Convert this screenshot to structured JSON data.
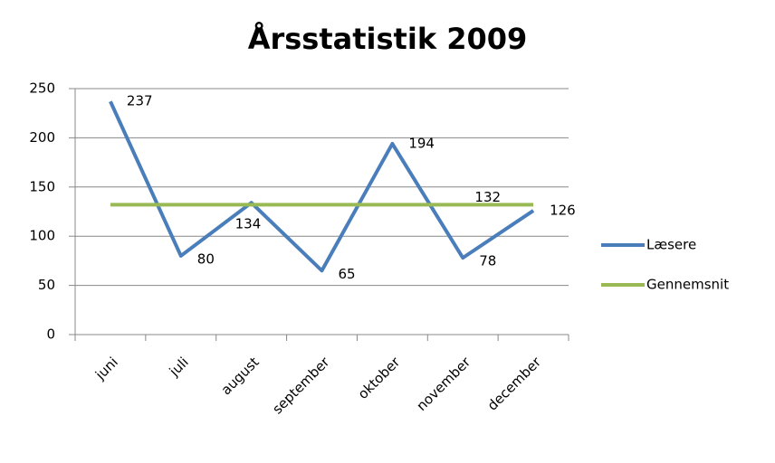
{
  "chart_data": {
    "type": "line",
    "title": "Årsstatistik 2009",
    "categories": [
      "juni",
      "juli",
      "august",
      "september",
      "oktober",
      "november",
      "december"
    ],
    "series": [
      {
        "name": "Læsere",
        "color": "#4a7ebb",
        "values": [
          237,
          80,
          134,
          65,
          194,
          78,
          126
        ],
        "data_labels": true
      },
      {
        "name": "Gennemsnit",
        "color": "#98b954",
        "values": [
          132,
          132,
          132,
          132,
          132,
          132,
          132
        ],
        "data_label_index": 6
      }
    ],
    "ylim": [
      0,
      250
    ],
    "yticks": [
      0,
      50,
      100,
      150,
      200,
      250
    ],
    "grid": true,
    "legend": "right"
  }
}
